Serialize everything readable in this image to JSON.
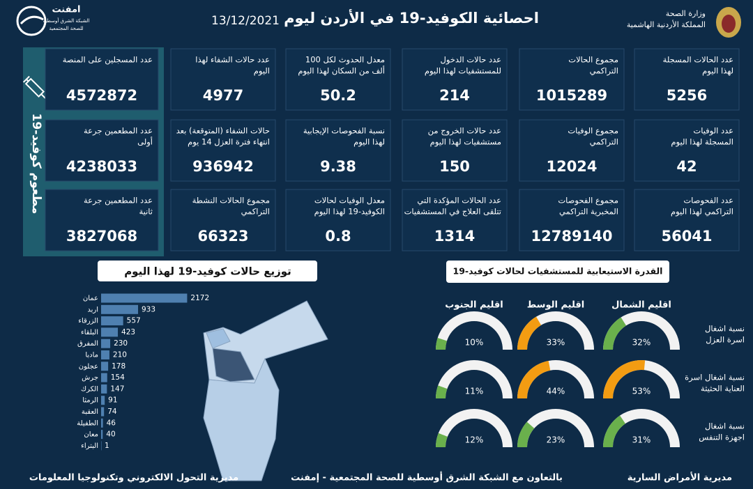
{
  "header": {
    "title": "احصائية الكوفيد-19 في الأردن ليوم",
    "date": "13/12/2021",
    "ministry": [
      "وزارة الصحة",
      "المملكة الأردنية الهاشمية"
    ],
    "logo": {
      "name": "امفنت",
      "subtitle": [
        "الشبكة الشرق أوسطية",
        "للصحة المجتمعية"
      ]
    }
  },
  "stats": [
    {
      "label": [
        "عدد الحالات المسجلة",
        "لهذا اليوم"
      ],
      "value": 5256
    },
    {
      "label": [
        "مجموع الحالات",
        "التراكمي"
      ],
      "value": 1015289
    },
    {
      "label": [
        "عدد حالات الدخول",
        "للمستشفيات لهذا اليوم"
      ],
      "value": 214
    },
    {
      "label": [
        "معدل الحدوث لكل 100",
        "ألف من السكان لهذا اليوم"
      ],
      "value": 50.2
    },
    {
      "label": [
        "عدد حالات الشفاء لهذا",
        "اليوم"
      ],
      "value": 4977
    },
    {
      "label": [
        "عدد الوفيات",
        "المسجلة لهذا اليوم"
      ],
      "value": 42
    },
    {
      "label": [
        "مجموع الوفيات",
        "التراكمي"
      ],
      "value": 12024
    },
    {
      "label": [
        "عدد حالات الخروج من",
        "مستشفيات لهذا اليوم"
      ],
      "value": 150
    },
    {
      "label": [
        "نسبة الفحوصات الإيجابية",
        "لهذا اليوم"
      ],
      "value": 9.38
    },
    {
      "label": [
        "حالات الشفاء (المتوقعة) بعد",
        "انتهاء فترة العزل 14 يوم"
      ],
      "value": 936942
    },
    {
      "label": [
        "عدد الفحوصات",
        "التراكمي لهذا اليوم"
      ],
      "value": 56041
    },
    {
      "label": [
        "مجموع الفحوصات",
        "المخبرية التراكمي"
      ],
      "value": 12789140
    },
    {
      "label": [
        "عدد الحالات المؤكدة التي",
        "تتلقى العلاج في المستشفيات"
      ],
      "value": 1314
    },
    {
      "label": [
        "معدل الوفيات لحالات",
        "الكوفيد-19 لهذا اليوم"
      ],
      "value": 0.8
    },
    {
      "label": [
        "مجموع الحالات النشطة",
        "التراكمي"
      ],
      "value": 66323
    }
  ],
  "vaccination": {
    "title": "مطعوم كوفيد-19",
    "cards": [
      {
        "label": [
          "عدد المسجلين على المنصة"
        ],
        "value": 4572872
      },
      {
        "label": [
          "عدد المطعمين جرعة",
          "أولى"
        ],
        "value": 4238033
      },
      {
        "label": [
          "عدد المطعمين جرعة",
          "ثانية"
        ],
        "value": 3827068
      }
    ]
  },
  "chart_data": [
    {
      "type": "bar",
      "title": "توزيع حالات كوفيد-19 لهذا اليوم",
      "categories": [
        "عمان",
        "اربد",
        "الزرقاء",
        "البلقاء",
        "المفرق",
        "مادبا",
        "عجلون",
        "جرش",
        "الكرك",
        "الرمثا",
        "العقبة",
        "الطفيلة",
        "معان",
        "البتراء"
      ],
      "values": [
        2172,
        933,
        557,
        423,
        230,
        210,
        178,
        154,
        147,
        91,
        74,
        46,
        40,
        1
      ],
      "color": "#4f80b0",
      "xlim": [
        0,
        2200
      ]
    },
    {
      "type": "gauge",
      "title": "القدرة الاستيعابية للمستشفيات لحالات كوفيد-19",
      "categories": [
        "اقليم الشمال",
        "اقليم الوسط",
        "اقليم الجنوب"
      ],
      "ylim": [
        0,
        100
      ],
      "track_color": "#f2f2f2",
      "series": [
        {
          "name": [
            "نسبة اشغال",
            "اسرة العزل"
          ],
          "values": [
            32,
            33,
            10
          ],
          "value_labels": [
            "32%",
            "33%",
            "10%"
          ],
          "colors": [
            "#6ab04c",
            "#f39c12",
            "#6ab04c"
          ]
        },
        {
          "name": [
            "نسبة اشغال اسرة",
            "العناية الحثيثة"
          ],
          "values": [
            53,
            44,
            11
          ],
          "value_labels": [
            "53%",
            "44%",
            "11%"
          ],
          "colors": [
            "#f39c12",
            "#f39c12",
            "#6ab04c"
          ]
        },
        {
          "name": [
            "نسبة اشغال",
            "اجهزة التنفس"
          ],
          "values": [
            31,
            23,
            12
          ],
          "value_labels": [
            "31%",
            "23%",
            "12%"
          ],
          "colors": [
            "#6ab04c",
            "#6ab04c",
            "#6ab04c"
          ]
        }
      ]
    }
  ],
  "footer": [
    "مديرية الأمراض السارية",
    "بالتعاون مع الشبكة الشرق أوسطية للصحة المجتمعية - إمفنت",
    "مديرية التحول الالكتروني وتكنولوجيا المعلومات"
  ]
}
